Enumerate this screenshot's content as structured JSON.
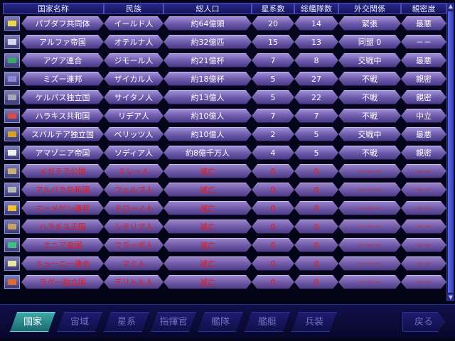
{
  "columns": [
    "国家名称",
    "民族",
    "総人口",
    "星系数",
    "総艦隊数",
    "外交関係",
    "親密度"
  ],
  "nations": [
    {
      "name": "パブダフ共同体",
      "race": "イールド人",
      "pop": "約64億頭",
      "systems": "20",
      "fleets": "14",
      "relation": "緊張",
      "affinity": "最悪",
      "flag": "#e8d850",
      "fallen": false
    },
    {
      "name": "アルファ帝国",
      "race": "オテルナ人",
      "pop": "約32億匹",
      "systems": "15",
      "fleets": "13",
      "relation": "同盟 0",
      "affinity": "－－",
      "flag": "#d8d8e8",
      "fallen": false
    },
    {
      "name": "アグア連合",
      "race": "ジモール人",
      "pop": "約21億杯",
      "systems": "7",
      "fleets": "8",
      "relation": "交戦中",
      "affinity": "最悪",
      "flag": "#3aa86a",
      "fallen": false
    },
    {
      "name": "ミズー連邦",
      "race": "ザイカル人",
      "pop": "約18億杯",
      "systems": "5",
      "fleets": "27",
      "relation": "不戦",
      "affinity": "親密",
      "flag": "#8a8ad8",
      "fallen": false
    },
    {
      "name": "ケルパス独立国",
      "race": "サイタノ人",
      "pop": "約13億人",
      "systems": "5",
      "fleets": "22",
      "relation": "不戦",
      "affinity": "親密",
      "flag": "#a8a8b8",
      "fallen": false
    },
    {
      "name": "ハラキス共和国",
      "race": "リデア人",
      "pop": "約10億人",
      "systems": "7",
      "fleets": "7",
      "relation": "不戦",
      "affinity": "中立",
      "flag": "#d84a4a",
      "fallen": false
    },
    {
      "name": "スバルテア独立国",
      "race": "ベリッツ人",
      "pop": "約10億人",
      "systems": "2",
      "fleets": "5",
      "relation": "交戦中",
      "affinity": "最悪",
      "flag": "#d8a020",
      "fallen": false
    },
    {
      "name": "アマゾニア帝国",
      "race": "ソディア人",
      "pop": "約8億千万人",
      "systems": "4",
      "fleets": "5",
      "relation": "不戦",
      "affinity": "親密",
      "flag": "#f0f0f0",
      "fallen": false
    },
    {
      "name": "メガテラ公国",
      "race": "ミレー人",
      "pop": "滅亡",
      "systems": "0",
      "fleets": "0",
      "relation": "－－－",
      "affinity": "－－",
      "flag": "#c8b078",
      "fallen": true
    },
    {
      "name": "アルバラ共和国",
      "race": "フェルブ人",
      "pop": "滅亡",
      "systems": "0",
      "fleets": "0",
      "relation": "－－－",
      "affinity": "－－",
      "flag": "#b8b8b8",
      "fallen": true
    },
    {
      "name": "ニーメゲン連邦",
      "race": "ミローノ人",
      "pop": "滅亡",
      "systems": "0",
      "fleets": "0",
      "relation": "－－－",
      "affinity": "－－",
      "flag": "#f0c030",
      "fallen": true
    },
    {
      "name": "ハラギス王国",
      "race": "シテリア人",
      "pop": "滅亡",
      "systems": "0",
      "fleets": "0",
      "relation": "－－－",
      "affinity": "－－",
      "flag": "#c8a060",
      "fallen": true
    },
    {
      "name": "エニア皇国",
      "race": "フラッポ人",
      "pop": "滅亡",
      "systems": "0",
      "fleets": "0",
      "relation": "－－－",
      "affinity": "－－",
      "flag": "#40c080",
      "fallen": true
    },
    {
      "name": "ミューニー連合",
      "race": "マミ人",
      "pop": "滅亡",
      "systems": "0",
      "fleets": "0",
      "relation": "－－－",
      "affinity": "－－",
      "flag": "#e8e8a0",
      "fallen": true
    },
    {
      "name": "ラグー独立国",
      "race": "デリトル人",
      "pop": "滅亡",
      "systems": "0",
      "fleets": "0",
      "relation": "－－－",
      "affinity": "－－",
      "flag": "#e06a30",
      "fallen": true
    }
  ],
  "tabs": [
    "国家",
    "宙域",
    "星系",
    "指揮官",
    "艦隊",
    "艦艇",
    "兵装"
  ],
  "back_label": "戻る",
  "active_tab": "国家"
}
